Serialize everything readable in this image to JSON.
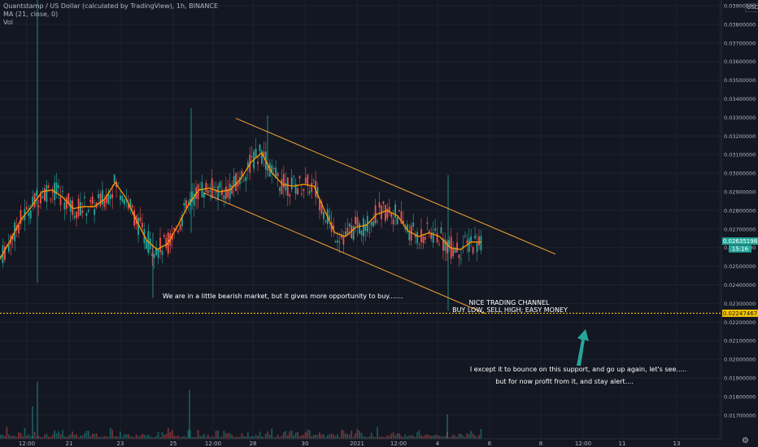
{
  "header": {
    "title": "Quantstamp / US Dollar (calculated by TradingView), 1h, BINANCE",
    "ma_label": "MA (21, close, 0)",
    "vol_label": "Vol",
    "currency": "USD"
  },
  "colors": {
    "background": "#131722",
    "grid": "#1e222d",
    "up": "#26a69a",
    "down": "#ef5350",
    "ma": "#ff9800",
    "channel": "#f7a734",
    "support": "#f5c400",
    "arrow": "#26a69a",
    "price_label": "#26a69a",
    "text": "#b2b5be"
  },
  "chart_data": {
    "type": "candlestick",
    "title": "Quantstamp / US Dollar (calculated by TradingView), 1h, BINANCE",
    "ylim": [
      0.0168,
      0.0399
    ],
    "y_ticks": [
      0.039,
      0.038,
      0.037,
      0.036,
      0.035,
      0.034,
      0.033,
      0.032,
      0.031,
      0.03,
      0.029,
      0.028,
      0.027,
      0.026,
      0.025,
      0.024,
      0.023,
      0.022,
      0.021,
      0.02,
      0.019,
      0.018,
      0.017
    ],
    "y_tick_labels": [
      "0.03900000",
      "0.03800000",
      "0.03700000",
      "0.03600000",
      "0.03500000",
      "0.03400000",
      "0.03300000",
      "0.03200000",
      "0.03100000",
      "0.03000000",
      "0.02900000",
      "0.02800000",
      "0.02700000",
      "0.02600000",
      "0.02500000",
      "0.02400000",
      "0.02300000",
      "0.02200000",
      "0.02100000",
      "0.02000000",
      "0.01900000",
      "0.01800000",
      "0.01700000"
    ],
    "x_ticks": [
      "12:00",
      "21",
      "23",
      "25",
      "12:00",
      "28",
      "30",
      "2021",
      "12:00",
      "4",
      "6",
      "8",
      "12:00",
      "11",
      "13",
      "15"
    ],
    "ma_anchor_prices": [
      0.0254,
      0.0264,
      0.0275,
      0.0282,
      0.029,
      0.0291,
      0.0287,
      0.0281,
      0.0282,
      0.0282,
      0.0286,
      0.0295,
      0.0287,
      0.0275,
      0.0264,
      0.0259,
      0.0262,
      0.0272,
      0.0283,
      0.0291,
      0.0292,
      0.029,
      0.0291,
      0.0297,
      0.0306,
      0.0311,
      0.03,
      0.0294,
      0.0293,
      0.0294,
      0.0293,
      0.028,
      0.0268,
      0.0266,
      0.0271,
      0.0272,
      0.0278,
      0.028,
      0.0277,
      0.0269,
      0.0266,
      0.0268,
      0.0266,
      0.026,
      0.0259,
      0.0263,
      0.0263
    ],
    "current_price": "0.02635198",
    "countdown": "15:16",
    "support_price": "0.02247467",
    "support_value": 0.02247467,
    "channel_upper": [
      [
        0.02675,
        0.03295
      ],
      [
        0.03135,
        0.02565
      ]
    ],
    "channel_lower": [
      [
        0.02515,
        0.02895
      ],
      [
        0.02855,
        0.02245
      ]
    ],
    "annotations": [
      "We are in a little bearish market, but it gives more opportunity to buy.......",
      "NICE TRADING CHANNEL",
      "BUY LOW, SELL HIGH; EASY MONEY",
      "I except it to bounce on this support, and go up again, let's see.....",
      "but for now profit from it, and stay alert...."
    ]
  }
}
